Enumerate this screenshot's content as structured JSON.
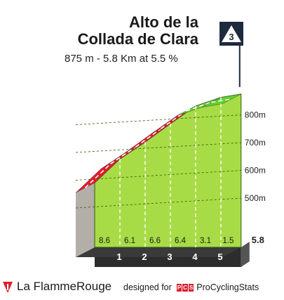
{
  "climb": {
    "title_line1": "Alto de la",
    "title_line2": "Collada de Clara",
    "subtitle": "875 m - 5.8 Km at 5.5 %",
    "category": "3"
  },
  "chart_data": {
    "type": "area",
    "title": "Alto de la Collada de Clara",
    "subtitle": "875 m - 5.8 Km at 5.5 %",
    "x_unit": "km",
    "y_unit": "m",
    "km_labels": [
      "1",
      "2",
      "3",
      "4",
      "5"
    ],
    "total_km_label": "5.8",
    "segments": [
      {
        "start_km": 0,
        "end_km": 1,
        "gradient": 8.6,
        "label": "8.6",
        "color": "#e8192c"
      },
      {
        "start_km": 1,
        "end_km": 2,
        "gradient": 6.1,
        "label": "6.1",
        "color": "#e8192c"
      },
      {
        "start_km": 2,
        "end_km": 3,
        "gradient": 6.6,
        "label": "6.6",
        "color": "#e8192c"
      },
      {
        "start_km": 3,
        "end_km": 4,
        "gradient": 6.4,
        "label": "6.4",
        "color": "#e8192c"
      },
      {
        "start_km": 4,
        "end_km": 5,
        "gradient": 3.1,
        "label": "3.1",
        "color": "#5fd32a"
      },
      {
        "start_km": 5,
        "end_km": 5.8,
        "gradient": 1.5,
        "label": "1.5",
        "color": "#5fd32a"
      }
    ],
    "elevation_ticks": [
      {
        "value": 500,
        "label": "500m"
      },
      {
        "value": 600,
        "label": "600m"
      },
      {
        "value": 700,
        "label": "700m"
      },
      {
        "value": 800,
        "label": "800m"
      }
    ],
    "y_range": [
      380,
      900
    ],
    "summit_elevation": 875,
    "grid": true
  },
  "footer": {
    "brand_prefix": "La Flamme",
    "brand_suffix": "Rouge",
    "credit_text": "designed for",
    "pcs_letters": [
      "P",
      "C",
      "S"
    ],
    "credit_brand": "ProCyclingStats"
  },
  "colors": {
    "steep": "#e8192c",
    "easy": "#5fd32a",
    "fill": "#a8dc46",
    "base": "#2c2c2c",
    "badge": "#1e2a3d",
    "brand_red": "#d9202e"
  }
}
